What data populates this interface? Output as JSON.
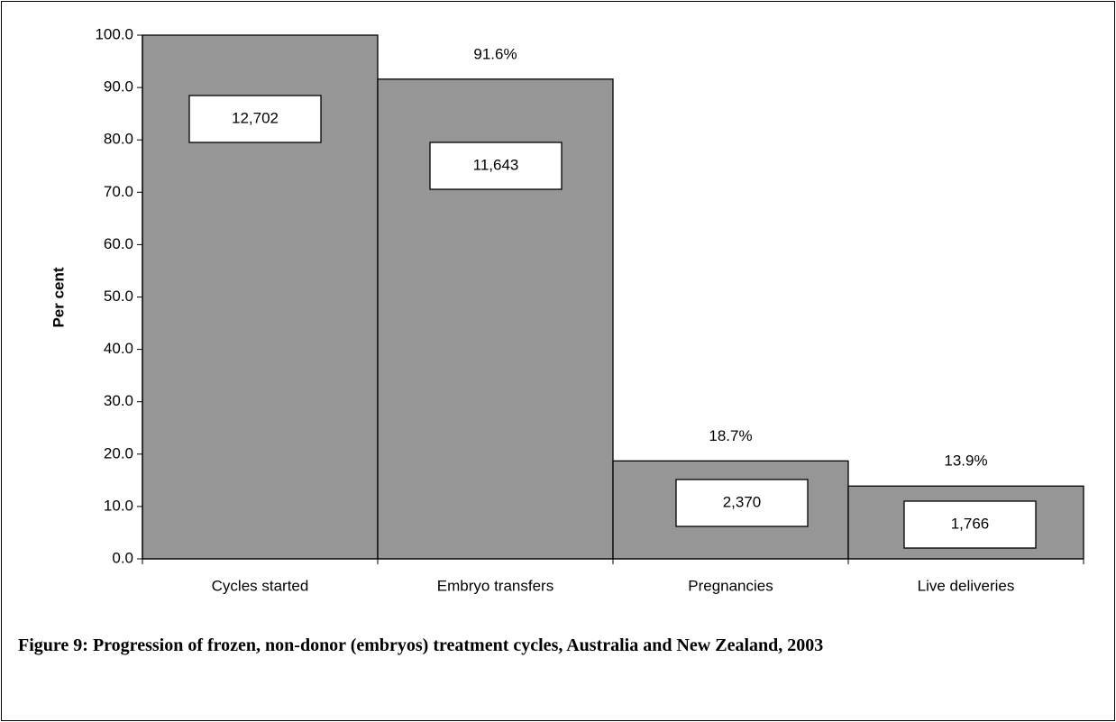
{
  "chart_data": {
    "type": "bar",
    "title": "Figure 9: Progression of frozen, non-donor (embryos) treatment cycles, Australia and New Zealand, 2003",
    "y_label": "Per cent",
    "categories": [
      "Cycles started",
      "Embryo transfers",
      "Pregnancies",
      "Live deliveries"
    ],
    "values": [
      100,
      91.6,
      18.7,
      13.9
    ],
    "value_labels": [
      null,
      "91.6%",
      "18.7%",
      "13.9%"
    ],
    "annotations": [
      "12,702",
      "11,643",
      "2,370",
      "1,766"
    ],
    "color": "#969696",
    "ylim": [
      0,
      100
    ],
    "yticks": [
      {
        "value": 0,
        "label": "0.0"
      },
      {
        "value": 10,
        "label": "10.0"
      },
      {
        "value": 20,
        "label": "20.0"
      },
      {
        "value": 30,
        "label": "30.0"
      },
      {
        "value": 40,
        "label": "40.0"
      },
      {
        "value": 50,
        "label": "50.0"
      },
      {
        "value": 60,
        "label": "60.0"
      },
      {
        "value": 70,
        "label": "70.0"
      },
      {
        "value": 80,
        "label": "80.0"
      },
      {
        "value": 90,
        "label": "90.0"
      },
      {
        "value": 100,
        "label": "100.0"
      }
    ]
  }
}
